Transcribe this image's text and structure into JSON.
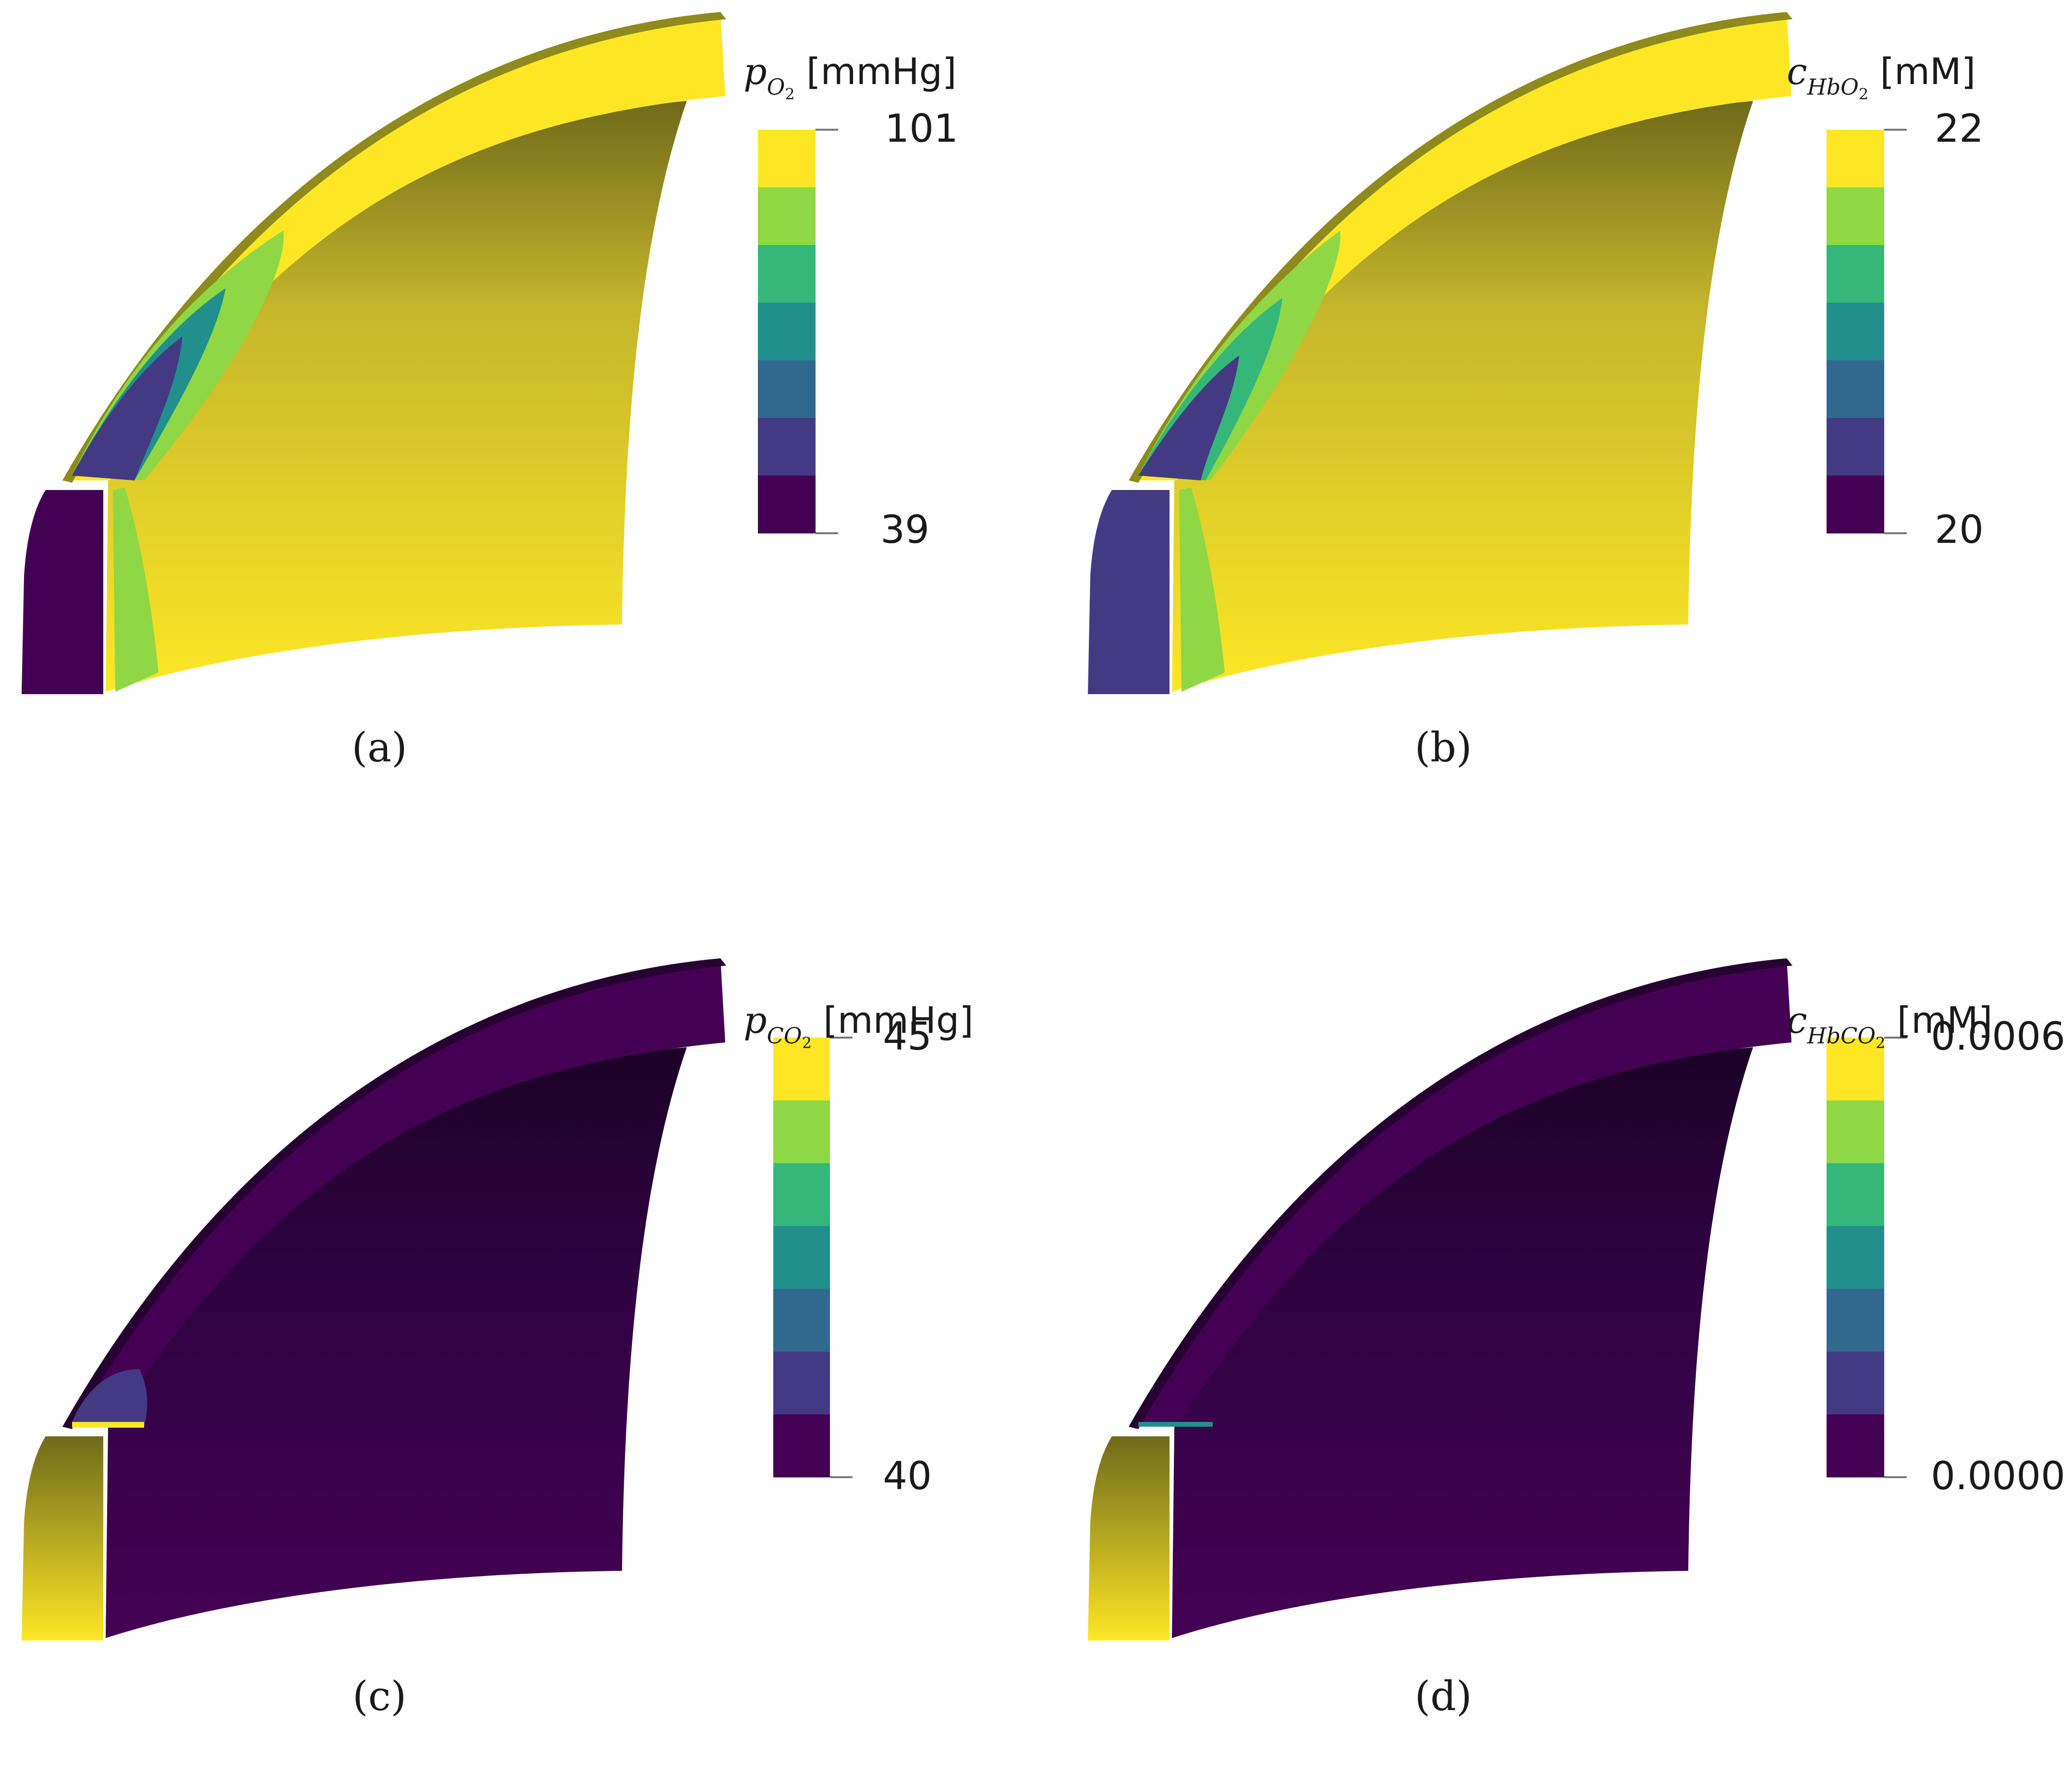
{
  "palette": [
    "#440154",
    "#443a83",
    "#31688e",
    "#21908d",
    "#35b779",
    "#8fd744",
    "#fde725"
  ],
  "panels": [
    {
      "id": "a",
      "caption": "(a)",
      "title": {
        "sym": "p",
        "sub": "O",
        "sub2": "2",
        "unit": " [mmHg]"
      },
      "colorbar": {
        "max_label": "101",
        "min_label": "39"
      },
      "field": "high"
    },
    {
      "id": "b",
      "caption": "(b)",
      "title": {
        "sym": "c",
        "sub": "HbO",
        "sub2": "2",
        "unit": " [mM]"
      },
      "colorbar": {
        "max_label": "22",
        "min_label": "20"
      },
      "field": "high"
    },
    {
      "id": "c",
      "caption": "(c)",
      "title": {
        "sym": "p",
        "sub": "CO",
        "sub2": "2",
        "unit": " [mmHg]"
      },
      "colorbar": {
        "max_label": "45",
        "min_label": "40"
      },
      "field": "low"
    },
    {
      "id": "d",
      "caption": "(d)",
      "title": {
        "sym": "c",
        "sub": "HbCO",
        "sub2": "2",
        "unit": " [mM]"
      },
      "colorbar": {
        "max_label": "0.0006",
        "min_label": "0.0000"
      },
      "field": "low"
    }
  ]
}
